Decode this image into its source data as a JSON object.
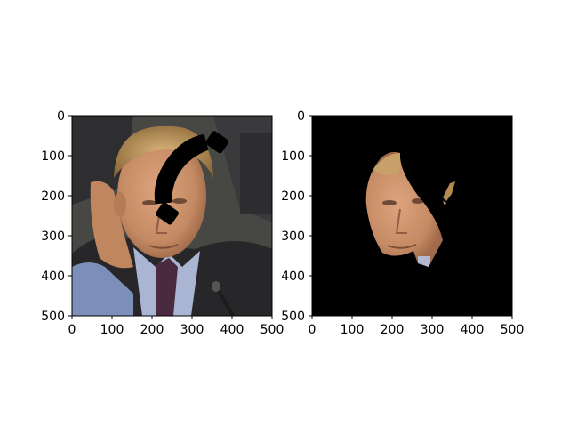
{
  "chart_data": [
    {
      "type": "image",
      "panel": "left",
      "title": "",
      "xlabel": "",
      "ylabel": "",
      "xlim": [
        0,
        500
      ],
      "ylim": [
        500,
        0
      ],
      "xticks": [
        0,
        100,
        200,
        300,
        400,
        500
      ],
      "yticks": [
        0,
        100,
        200,
        300,
        400,
        500
      ],
      "content": "portrait photograph with a black telephone-handset icon overlaid on the forehead"
    },
    {
      "type": "image",
      "panel": "right",
      "title": "",
      "xlabel": "",
      "ylabel": "",
      "xlim": [
        0,
        500
      ],
      "ylim": [
        500,
        0
      ],
      "xticks": [
        0,
        100,
        200,
        300,
        400,
        500
      ],
      "yticks": [
        0,
        100,
        200,
        300,
        400,
        500
      ],
      "content": "segmented face region on black background"
    }
  ],
  "colors": {
    "axis": "#000000",
    "mask_background": "#000000",
    "suit": "#2a2a2c",
    "skin": "#c8906a",
    "hair": "#b38a4e",
    "shirt": "#a8b4d0",
    "tie": "#4c2a3e",
    "backdrop": "#4a4a48"
  }
}
